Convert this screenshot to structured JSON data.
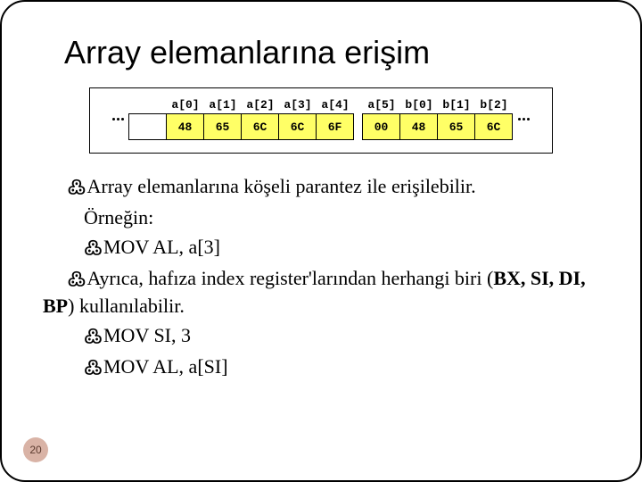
{
  "title": "Array elemanlarına erişim",
  "memory": {
    "blank_first": true,
    "gap_before_index": 5,
    "cols": [
      {
        "label": "a[0]",
        "value": "48",
        "fill": true
      },
      {
        "label": "a[1]",
        "value": "65",
        "fill": true
      },
      {
        "label": "a[2]",
        "value": "6C",
        "fill": true
      },
      {
        "label": "a[3]",
        "value": "6C",
        "fill": true
      },
      {
        "label": "a[4]",
        "value": "6F",
        "fill": true
      },
      {
        "label": "a[5]",
        "value": "00",
        "fill": true
      },
      {
        "label": "b[0]",
        "value": "48",
        "fill": true
      },
      {
        "label": "b[1]",
        "value": "65",
        "fill": true
      },
      {
        "label": "b[2]",
        "value": "6C",
        "fill": true
      }
    ]
  },
  "body": {
    "p1a": "Array elemanlarına köşeli parantez ile erişilebilir.",
    "p1b": "Örneğin:",
    "c1": "MOV AL, a[3]",
    "p2a": "Ayrıca, hafıza index register'larından herhangi biri (",
    "p2b": "BX, SI, DI, BP",
    "p2c": ") kullanılabilir.",
    "c2": "MOV SI, 3",
    "c3": "MOV AL, a[SI]"
  },
  "page": "20",
  "colors": {
    "cell_fill": "#ffff66",
    "page_badge_bg": "#d9b3a6",
    "page_badge_fg": "#5a3a2e"
  }
}
